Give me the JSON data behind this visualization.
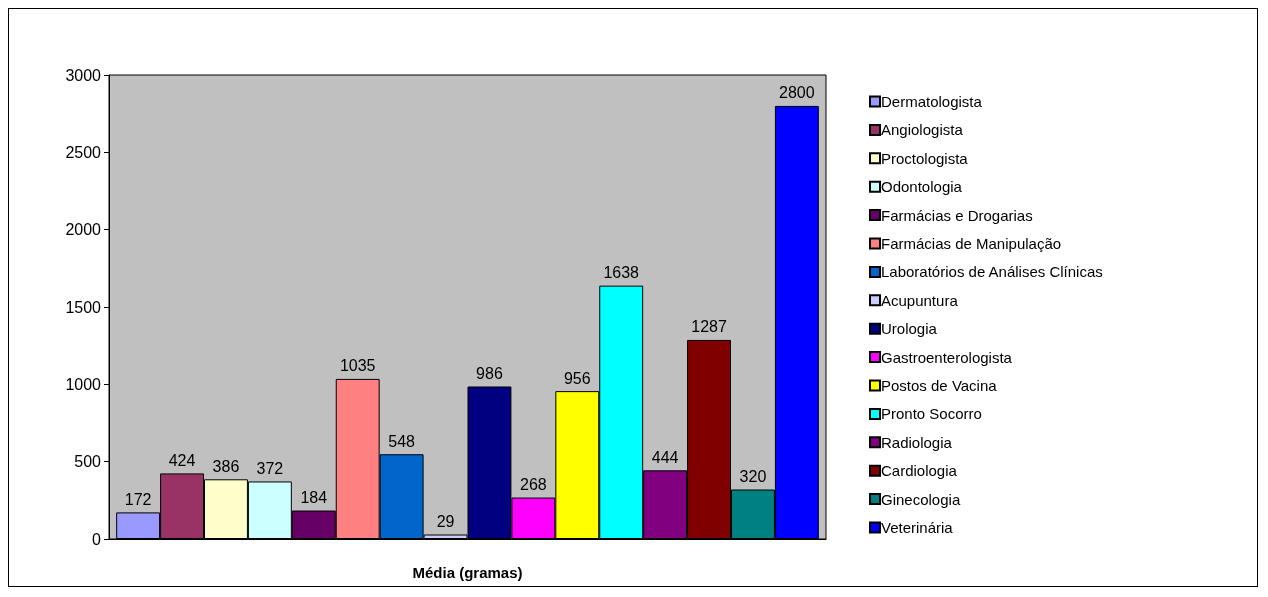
{
  "chart_data": {
    "type": "bar",
    "xlabel": "Média (gramas)",
    "categories": [
      null
    ],
    "ylim": [
      0,
      3000
    ],
    "yticks": [
      0,
      500,
      1000,
      1500,
      2000,
      2500,
      3000
    ],
    "grid": false,
    "legend": "right",
    "data_labels": true,
    "series": [
      {
        "name": "Dermatologista",
        "color": "#9999ff",
        "values": [
          172
        ]
      },
      {
        "name": "Angiologista",
        "color": "#993366",
        "values": [
          424
        ]
      },
      {
        "name": "Proctologista",
        "color": "#ffffcc",
        "values": [
          386
        ]
      },
      {
        "name": "Odontologia",
        "color": "#ccffff",
        "values": [
          372
        ]
      },
      {
        "name": "Farmácias e Drogarias",
        "color": "#660066",
        "values": [
          184
        ]
      },
      {
        "name": "Farmácias de Manipulação",
        "color": "#ff8080",
        "values": [
          1035
        ]
      },
      {
        "name": "Laboratórios de Análises Clínicas",
        "color": "#0066cc",
        "values": [
          548
        ]
      },
      {
        "name": "Acupuntura",
        "color": "#ccccff",
        "values": [
          29
        ]
      },
      {
        "name": "Urologia",
        "color": "#000080",
        "values": [
          986
        ]
      },
      {
        "name": "Gastroenterologista",
        "color": "#ff00ff",
        "values": [
          268
        ]
      },
      {
        "name": "Postos de Vacina",
        "color": "#ffff00",
        "values": [
          956
        ]
      },
      {
        "name": "Pronto Socorro",
        "color": "#00ffff",
        "values": [
          1638
        ]
      },
      {
        "name": "Radiologia",
        "color": "#800080",
        "values": [
          444
        ]
      },
      {
        "name": "Cardiologia",
        "color": "#800000",
        "values": [
          1287
        ]
      },
      {
        "name": "Ginecologia",
        "color": "#008080",
        "values": [
          320
        ]
      },
      {
        "name": "Veterinária",
        "color": "#0000ff",
        "values": [
          2800
        ]
      }
    ]
  }
}
